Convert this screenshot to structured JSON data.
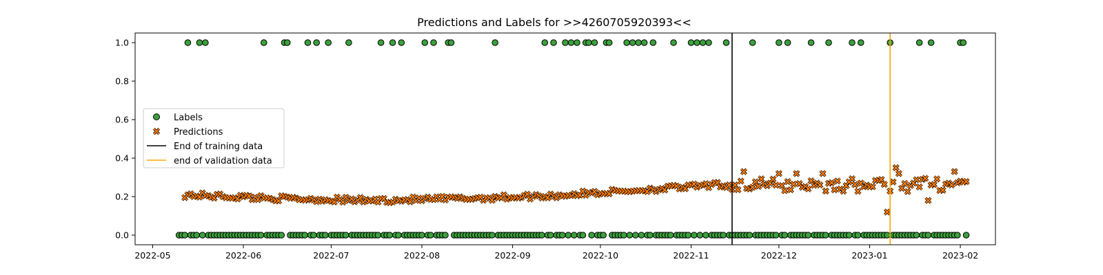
{
  "chart_data": {
    "type": "scatter",
    "title": "Predictions and Labels for >>4260705920393<<",
    "xlabel": "",
    "ylabel": "",
    "grid": false,
    "legend_position": "center-left",
    "xlim": [
      "2022-04-25",
      "2023-02-13"
    ],
    "ylim": [
      -0.05,
      1.05
    ],
    "x_ticks": [
      "2022-05-01",
      "2022-06-01",
      "2022-07-01",
      "2022-08-01",
      "2022-09-01",
      "2022-10-01",
      "2022-11-01",
      "2022-12-01",
      "2023-01-01",
      "2023-02-01"
    ],
    "x_tick_labels": [
      "2022-05",
      "2022-06",
      "2022-07",
      "2022-08",
      "2022-09",
      "2022-10",
      "2022-11",
      "2022-12",
      "2023-01",
      "2023-02"
    ],
    "y_ticks": [
      0.0,
      0.2,
      0.4,
      0.6,
      0.8,
      1.0
    ],
    "y_tick_labels": [
      "0.0",
      "0.2",
      "0.4",
      "0.6",
      "0.8",
      "1.0"
    ],
    "label_range": [
      "2022-05-10",
      "2023-02-03"
    ],
    "label_ones": [
      "2022-05-13",
      "2022-05-17",
      "2022-05-19",
      "2022-06-08",
      "2022-06-15",
      "2022-06-16",
      "2022-06-23",
      "2022-06-26",
      "2022-06-30",
      "2022-07-07",
      "2022-07-18",
      "2022-07-22",
      "2022-07-25",
      "2022-08-02",
      "2022-08-05",
      "2022-08-10",
      "2022-08-11",
      "2022-08-26",
      "2022-09-12",
      "2022-09-15",
      "2022-09-19",
      "2022-09-21",
      "2022-09-23",
      "2022-09-26",
      "2022-09-27",
      "2022-09-29",
      "2022-10-03",
      "2022-10-04",
      "2022-10-10",
      "2022-10-12",
      "2022-10-14",
      "2022-10-16",
      "2022-10-19",
      "2022-10-26",
      "2022-11-01",
      "2022-11-03",
      "2022-11-05",
      "2022-11-07",
      "2022-11-13",
      "2022-11-22",
      "2022-12-01",
      "2022-12-04",
      "2022-12-12",
      "2022-12-18",
      "2022-12-26",
      "2022-12-29",
      "2023-01-08",
      "2023-01-18",
      "2023-01-22",
      "2023-02-01",
      "2023-02-02"
    ],
    "markers": {
      "labels": {
        "color": "#3ca03c",
        "edge": "#000000",
        "shape": "circle"
      },
      "predictions": {
        "color": "#ff7f0e",
        "edge": "#000000",
        "shape": "x"
      }
    },
    "predictions_trend": [
      {
        "x": "2022-05-10",
        "y": 0.21
      },
      {
        "x": "2022-06-15",
        "y": 0.19
      },
      {
        "x": "2022-07-15",
        "y": 0.18
      },
      {
        "x": "2022-08-15",
        "y": 0.19
      },
      {
        "x": "2022-09-15",
        "y": 0.205
      },
      {
        "x": "2022-10-15",
        "y": 0.235
      },
      {
        "x": "2022-11-10",
        "y": 0.26
      },
      {
        "x": "2022-12-15",
        "y": 0.26
      },
      {
        "x": "2023-01-15",
        "y": 0.26
      },
      {
        "x": "2023-02-03",
        "y": 0.27
      }
    ],
    "prediction_outliers": [
      {
        "x": "2022-11-19",
        "y": 0.33
      },
      {
        "x": "2022-12-01",
        "y": 0.32
      },
      {
        "x": "2022-12-07",
        "y": 0.32
      },
      {
        "x": "2022-12-16",
        "y": 0.32
      },
      {
        "x": "2023-01-07",
        "y": 0.12
      },
      {
        "x": "2023-01-10",
        "y": 0.35
      },
      {
        "x": "2023-01-11",
        "y": 0.32
      },
      {
        "x": "2023-01-30",
        "y": 0.33
      },
      {
        "x": "2023-01-21",
        "y": 0.18
      }
    ],
    "vlines": [
      {
        "name": "End of training data",
        "x": "2022-11-15",
        "color": "#000000"
      },
      {
        "name": "end of validation data",
        "x": "2023-01-08",
        "color": "#ffa500"
      }
    ],
    "legend": [
      {
        "key": "labels",
        "text": "Labels"
      },
      {
        "key": "predictions",
        "text": "Predictions"
      },
      {
        "key": "vline0",
        "text": "End of training data"
      },
      {
        "key": "vline1",
        "text": "end of validation data"
      }
    ]
  }
}
